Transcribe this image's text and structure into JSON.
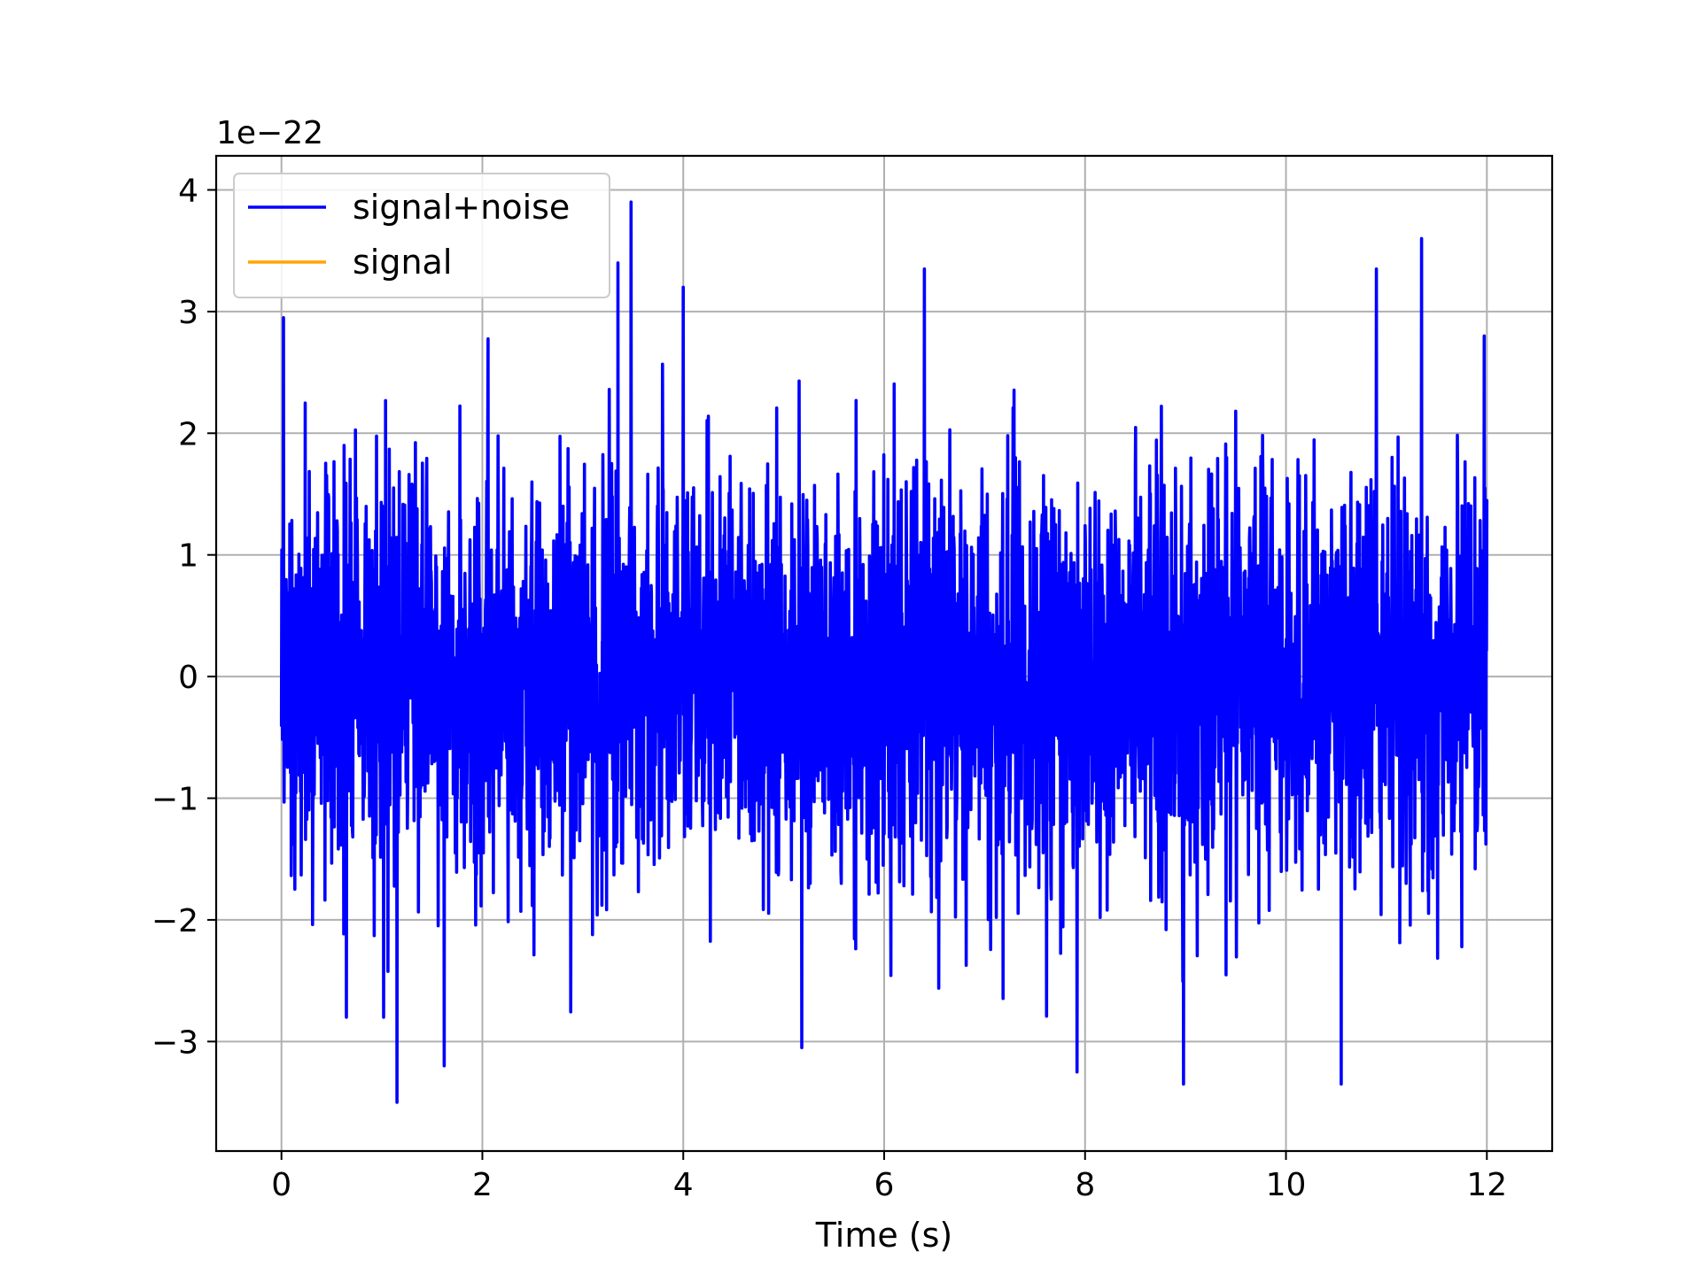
{
  "chart_data": {
    "type": "line",
    "xlabel": "Time (s)",
    "ylabel": "",
    "y_offset_text": "1e−22",
    "xlim": [
      -0.65,
      12.65
    ],
    "ylim": [
      -3.9,
      4.28
    ],
    "x_ticks": [
      0,
      2,
      4,
      6,
      8,
      10,
      12
    ],
    "x_tick_labels": [
      "0",
      "2",
      "4",
      "6",
      "8",
      "10",
      "12"
    ],
    "y_ticks": [
      -3,
      -2,
      -1,
      0,
      1,
      2,
      3,
      4
    ],
    "y_tick_labels": [
      "−3",
      "−2",
      "−1",
      "0",
      "1",
      "2",
      "3",
      "4"
    ],
    "grid": true,
    "legend_location": "upper-left",
    "series": [
      {
        "name": "signal+noise",
        "color": "#0000ff",
        "x_range": [
          0,
          12
        ],
        "y_range_approx": [
          -3.5,
          3.9
        ],
        "notable_peaks": [
          {
            "x": 0.02,
            "y": 2.95
          },
          {
            "x": 3.35,
            "y": 3.4
          },
          {
            "x": 3.48,
            "y": 3.9
          },
          {
            "x": 4.0,
            "y": 3.2
          },
          {
            "x": 6.4,
            "y": 3.35
          },
          {
            "x": 10.9,
            "y": 3.35
          },
          {
            "x": 11.35,
            "y": 3.6
          }
        ],
        "notable_troughs": [
          {
            "x": 1.15,
            "y": -3.5
          },
          {
            "x": 1.62,
            "y": -3.2
          },
          {
            "x": 5.18,
            "y": -3.05
          },
          {
            "x": 7.92,
            "y": -3.25
          },
          {
            "x": 8.98,
            "y": -3.35
          },
          {
            "x": 10.55,
            "y": -3.35
          }
        ]
      },
      {
        "name": "signal",
        "color": "#ffa500",
        "values": [
          0
        ]
      }
    ]
  }
}
